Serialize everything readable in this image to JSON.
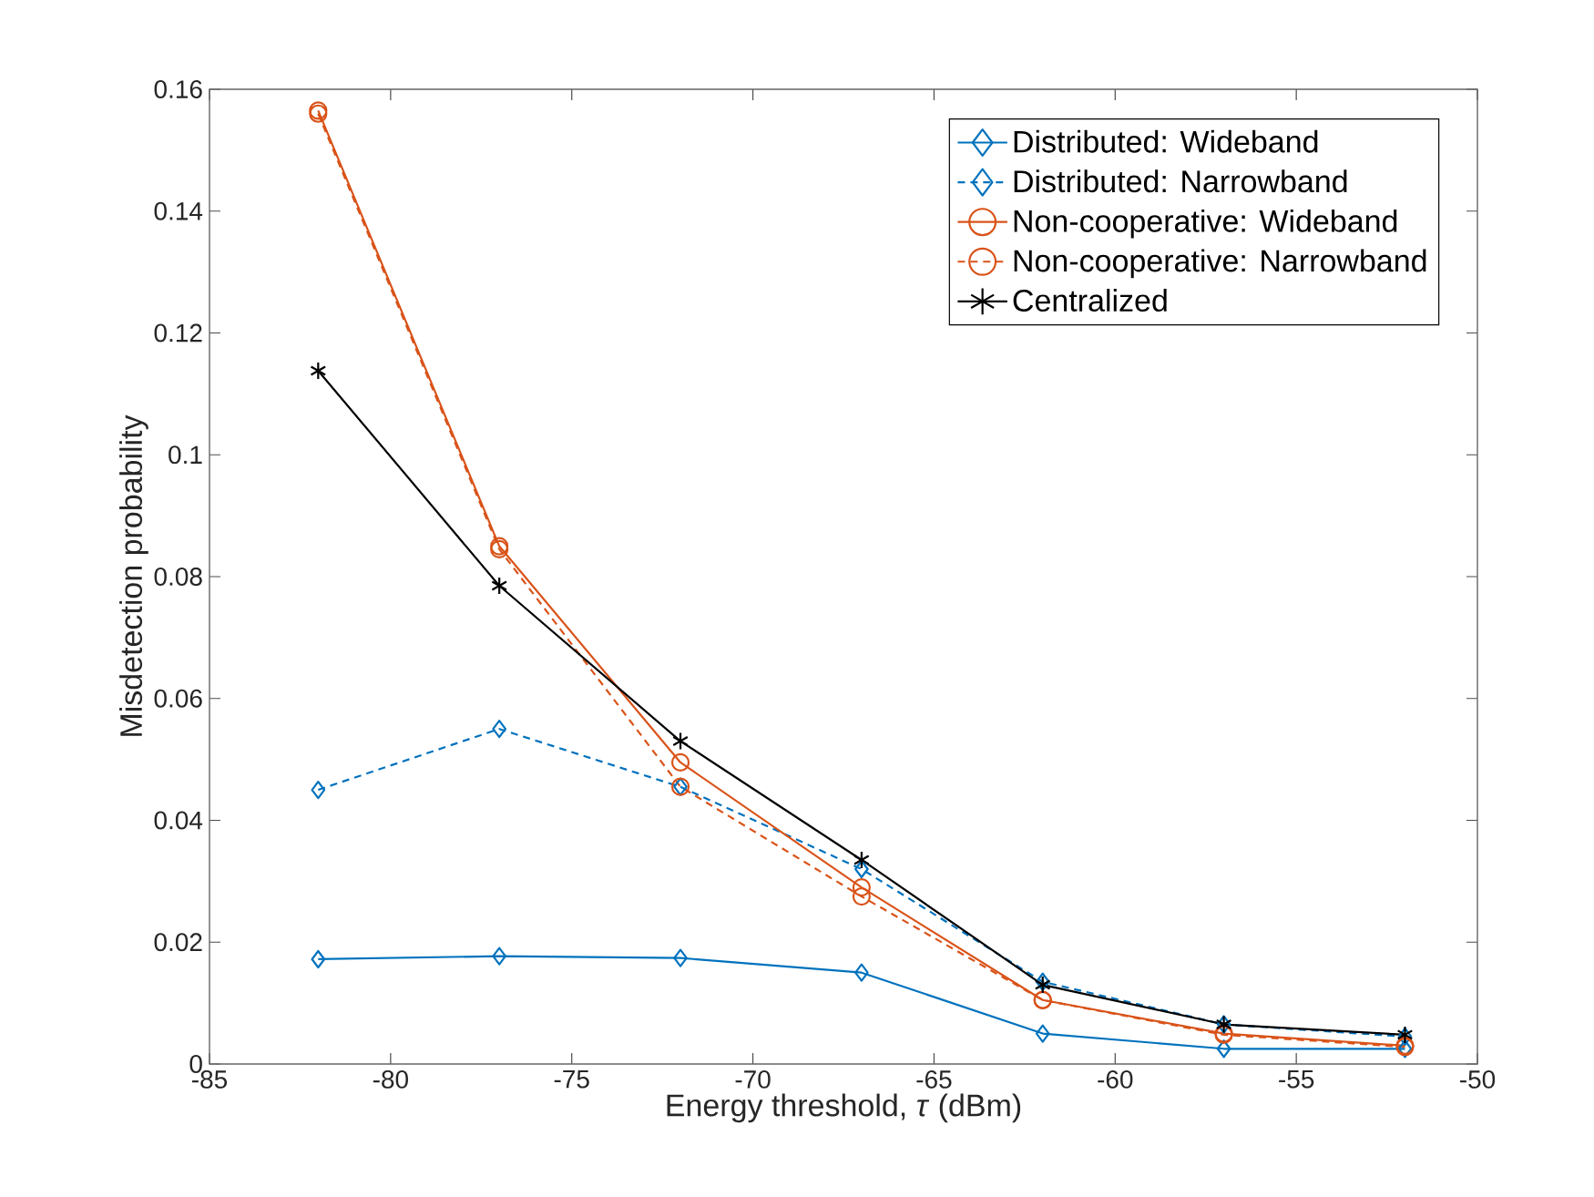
{
  "chart_data": {
    "type": "line",
    "xlabel": "Energy threshold, *τ* (dBm)",
    "ylabel": "Misdetection probability",
    "x": [
      -82,
      -77,
      -72,
      -67,
      -62,
      -57,
      -52
    ],
    "series": [
      {
        "name": "Distributed: Wideband",
        "color": "#0072bd",
        "marker": "diamond",
        "line_style": "solid",
        "values": [
          0.0172,
          0.0177,
          0.0174,
          0.015,
          0.005,
          0.0025,
          0.0025
        ]
      },
      {
        "name": "Distributed: Narrowband",
        "color": "#0072bd",
        "marker": "diamond",
        "line_style": "dashed",
        "values": [
          0.045,
          0.055,
          0.0455,
          0.032,
          0.0135,
          0.0065,
          0.0045
        ]
      },
      {
        "name": "Non-cooperative: Wideband",
        "color": "#d95319",
        "marker": "circle",
        "line_style": "solid",
        "values": [
          0.1565,
          0.085,
          0.0495,
          0.029,
          0.0105,
          0.005,
          0.003
        ]
      },
      {
        "name": "Non-cooperative: Narrowband",
        "color": "#d95319",
        "marker": "circle",
        "line_style": "dashed",
        "values": [
          0.156,
          0.0845,
          0.0455,
          0.0275,
          0.0105,
          0.0048,
          0.0028
        ]
      },
      {
        "name": "Centralized",
        "color": "#000000",
        "marker": "cross",
        "line_style": "solid",
        "values": [
          0.1138,
          0.0785,
          0.053,
          0.0335,
          0.013,
          0.0065,
          0.0048
        ]
      }
    ],
    "xlim": [
      -85,
      -50
    ],
    "xticks": [
      -85,
      -80,
      -75,
      -70,
      -65,
      -60,
      -55,
      -50
    ],
    "ylim": [
      0,
      0.16
    ],
    "yticks": [
      0,
      0.02,
      0.04,
      0.06,
      0.08,
      0.1,
      0.12,
      0.14,
      0.16
    ],
    "grid": false,
    "legend": "top right"
  }
}
